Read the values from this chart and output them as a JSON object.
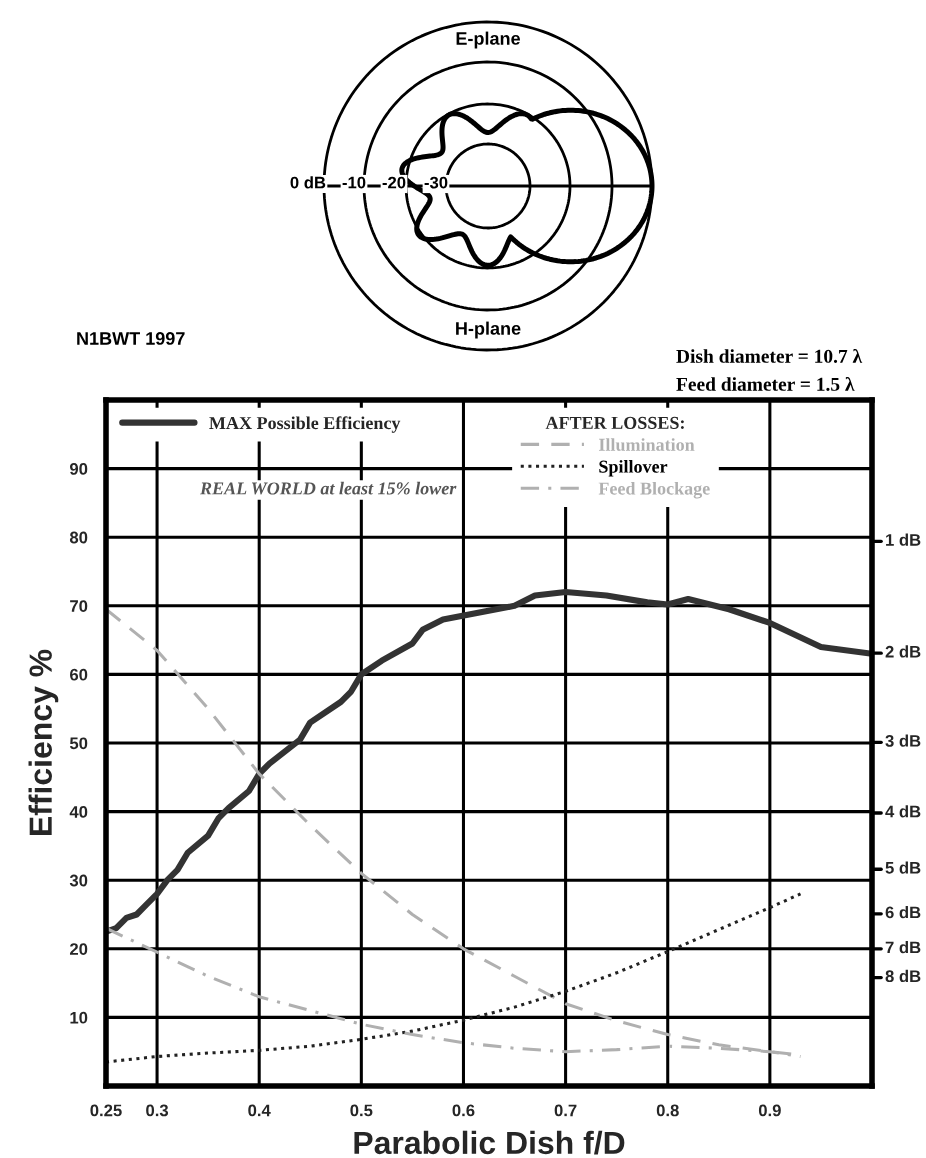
{
  "chart_data": {
    "type": "line",
    "xlabel": "Parabolic Dish f/D",
    "ylabel": "Efficiency %",
    "legend_title": "AFTER LOSSES:",
    "annotations": [
      "E-plane",
      "H-plane",
      "0 dB",
      "-10",
      "-20",
      "-30",
      "N1BWT 1997",
      "Dish diameter = 10.7 λ",
      "Feed diameter = 1.5 λ",
      "REAL WORLD at least 15% lower"
    ],
    "ref_lines": [
      {
        "axis": "y",
        "value": 79.4,
        "label": "1 dB"
      },
      {
        "axis": "y",
        "value": 63.1,
        "label": "2 dB"
      },
      {
        "axis": "y",
        "value": 50.1,
        "label": "3 dB"
      },
      {
        "axis": "y",
        "value": 39.8,
        "label": "4 dB"
      },
      {
        "axis": "y",
        "value": 31.6,
        "label": "5 dB"
      },
      {
        "axis": "y",
        "value": 25.1,
        "label": "6 dB"
      },
      {
        "axis": "y",
        "value": 20.0,
        "label": "7 dB"
      },
      {
        "axis": "y",
        "value": 15.8,
        "label": "8 dB"
      }
    ],
    "xlim": [
      0.25,
      1.0
    ],
    "xticks": [
      0.25,
      0.3,
      0.4,
      0.5,
      0.6,
      0.7,
      0.8,
      0.9
    ],
    "ylim": [
      0,
      100
    ],
    "yticks": [
      10,
      20,
      30,
      40,
      50,
      60,
      70,
      80,
      90
    ],
    "grid": true,
    "legend": "top",
    "marker": "none",
    "series": [
      {
        "name": "MAX Possible Efficiency",
        "color": "#333333",
        "line_style": "solid",
        "x": [
          0.25,
          0.26,
          0.27,
          0.28,
          0.29,
          0.3,
          0.31,
          0.32,
          0.33,
          0.35,
          0.36,
          0.37,
          0.39,
          0.4,
          0.41,
          0.44,
          0.45,
          0.48,
          0.49,
          0.5,
          0.52,
          0.55,
          0.56,
          0.58,
          0.65,
          0.67,
          0.7,
          0.74,
          0.78,
          0.8,
          0.82,
          0.86,
          0.9,
          0.95,
          1.0
        ],
        "values": [
          22.5,
          23,
          24.5,
          25,
          26.5,
          28,
          30,
          31.5,
          34,
          36.5,
          39,
          40.5,
          43,
          45.5,
          47,
          50.5,
          53,
          56,
          57.5,
          60,
          62,
          64.5,
          66.5,
          68,
          70,
          71.5,
          72,
          71.5,
          70.5,
          70.2,
          71,
          69.5,
          67.5,
          64,
          63
        ]
      },
      {
        "name": "Illumination",
        "color": "#b0b0b0",
        "line_style": "dashed",
        "x": [
          0.25,
          0.3,
          0.35,
          0.4,
          0.45,
          0.5,
          0.55,
          0.6,
          0.65,
          0.7,
          0.75,
          0.8,
          0.85,
          0.9,
          0.93
        ],
        "values": [
          69.5,
          63.5,
          55,
          45.5,
          38,
          31,
          25,
          20,
          16,
          12,
          9.5,
          7.5,
          6,
          5,
          4.5
        ]
      },
      {
        "name": "Spillover",
        "color": "#222222",
        "line_style": "dotted",
        "x": [
          0.25,
          0.3,
          0.35,
          0.4,
          0.45,
          0.5,
          0.55,
          0.6,
          0.65,
          0.7,
          0.75,
          0.8,
          0.85,
          0.9,
          0.93
        ],
        "values": [
          3.5,
          4.3,
          4.8,
          5.2,
          5.8,
          6.8,
          8,
          9.6,
          11.5,
          13.8,
          16.5,
          19.6,
          22.8,
          26,
          28
        ]
      },
      {
        "name": "Feed Blockage",
        "color": "#b0b0b0",
        "line_style": "dashdot",
        "x": [
          0.25,
          0.3,
          0.35,
          0.4,
          0.45,
          0.5,
          0.55,
          0.6,
          0.65,
          0.7,
          0.75,
          0.8,
          0.85,
          0.9,
          0.93
        ],
        "values": [
          23,
          19.5,
          16,
          13,
          11,
          9,
          7.5,
          6.3,
          5.5,
          5,
          5.3,
          5.8,
          5.5,
          5,
          4.3
        ]
      }
    ]
  }
}
